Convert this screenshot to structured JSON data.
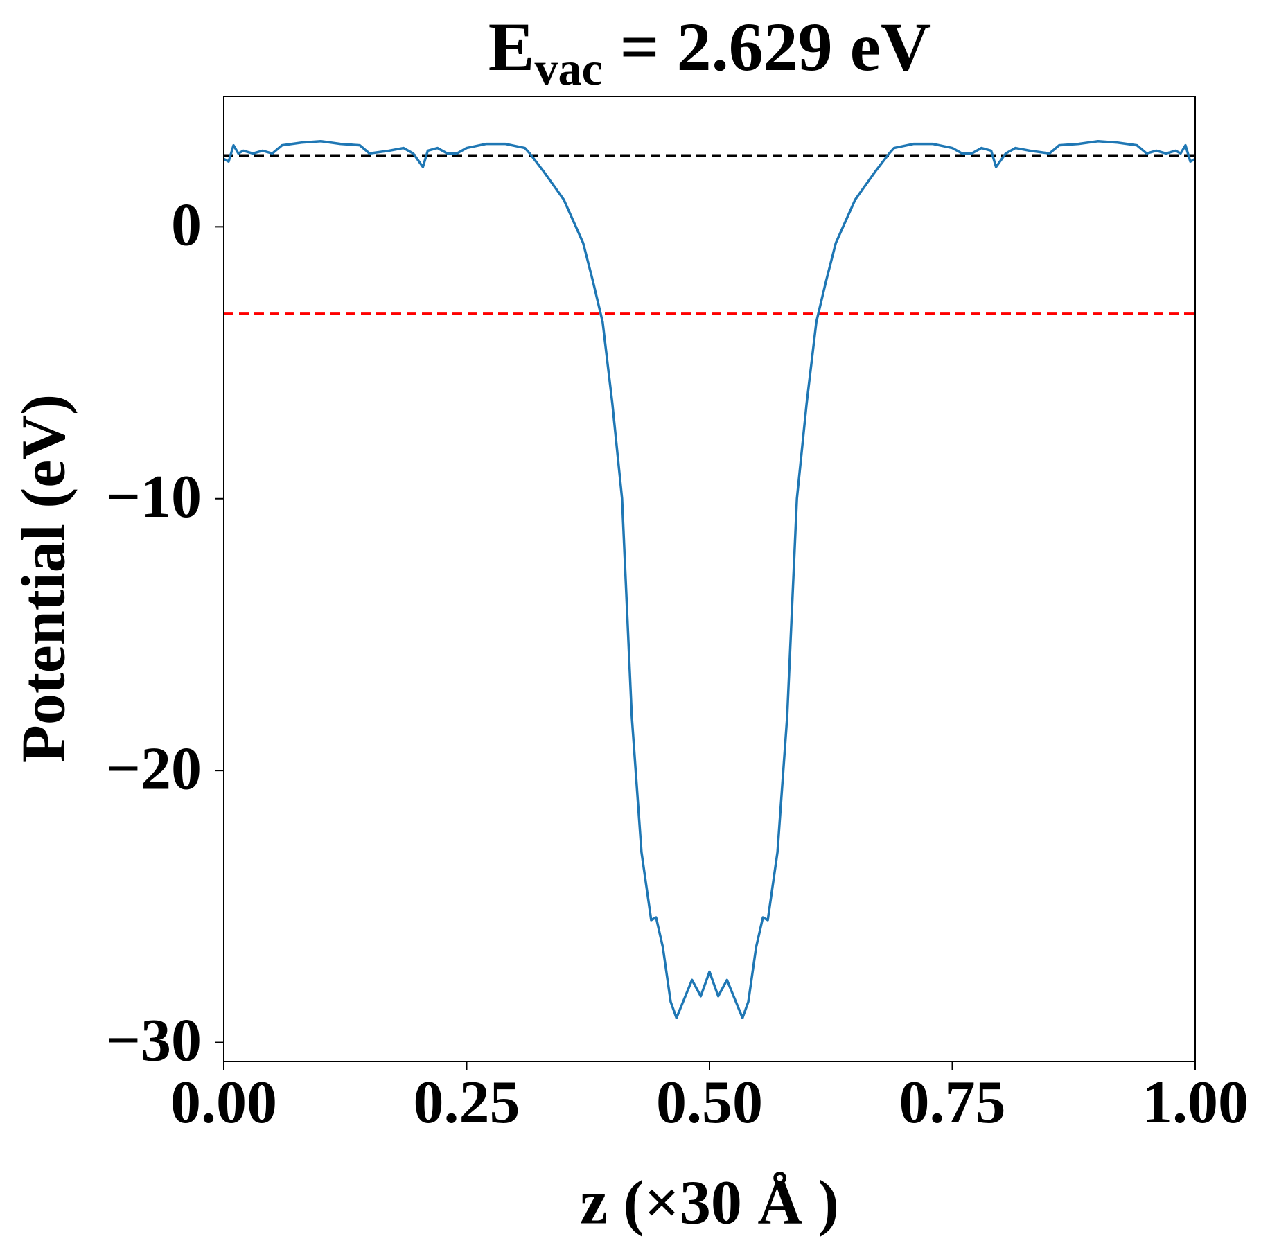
{
  "chart_data": {
    "type": "line",
    "title_parts": [
      "E",
      "vac",
      " = 2.629 eV"
    ],
    "xlabel": "z (×30 Å )",
    "ylabel": "Potential (eV)",
    "x": [
      0,
      0.005,
      0.01,
      0.015,
      0.02,
      0.03,
      0.04,
      0.05,
      0.06,
      0.08,
      0.1,
      0.12,
      0.14,
      0.15,
      0.17,
      0.185,
      0.195,
      0.205,
      0.21,
      0.22,
      0.23,
      0.24,
      0.25,
      0.27,
      0.29,
      0.31,
      0.315,
      0.33,
      0.35,
      0.37,
      0.38,
      0.39,
      0.4,
      0.41,
      0.42,
      0.43,
      0.44,
      0.445,
      0.452,
      0.46,
      0.466,
      0.474,
      0.482,
      0.491,
      0.5,
      0.509,
      0.518,
      0.526,
      0.534,
      0.54,
      0.548,
      0.555,
      0.56,
      0.57,
      0.58,
      0.59,
      0.6,
      0.61,
      0.62,
      0.63,
      0.65,
      0.67,
      0.685,
      0.69,
      0.71,
      0.73,
      0.75,
      0.76,
      0.77,
      0.78,
      0.79,
      0.795,
      0.805,
      0.815,
      0.83,
      0.85,
      0.86,
      0.88,
      0.9,
      0.92,
      0.94,
      0.95,
      0.96,
      0.97,
      0.98,
      0.985,
      0.99,
      0.995,
      1.0
    ],
    "values": [
      2.5,
      2.4,
      3.0,
      2.7,
      2.8,
      2.7,
      2.8,
      2.7,
      3.0,
      3.1,
      3.15,
      3.05,
      3.0,
      2.7,
      2.8,
      2.9,
      2.7,
      2.2,
      2.8,
      2.9,
      2.7,
      2.7,
      2.9,
      3.05,
      3.05,
      2.9,
      2.7,
      2.0,
      1.0,
      -0.6,
      -2.0,
      -3.5,
      -6.5,
      -10,
      -18,
      -23,
      -25.5,
      -25.4,
      -26.5,
      -28.5,
      -29.1,
      -28.4,
      -27.7,
      -28.3,
      -27.4,
      -28.3,
      -27.7,
      -28.4,
      -29.1,
      -28.5,
      -26.5,
      -25.4,
      -25.5,
      -23,
      -18,
      -10,
      -6.5,
      -3.5,
      -2.0,
      -0.6,
      1.0,
      2.0,
      2.7,
      2.9,
      3.05,
      3.05,
      2.9,
      2.7,
      2.7,
      2.9,
      2.8,
      2.2,
      2.7,
      2.9,
      2.8,
      2.7,
      3.0,
      3.05,
      3.15,
      3.1,
      3.0,
      2.7,
      2.8,
      2.7,
      2.8,
      2.7,
      3.0,
      2.4,
      2.5
    ],
    "color": "#1f77b4",
    "hlines": [
      {
        "y": 2.629,
        "color": "#000000"
      },
      {
        "y": -3.2,
        "color": "#ff0000"
      }
    ],
    "xlim": [
      0,
      1
    ],
    "ylim": [
      -30.7,
      4.8
    ],
    "xticks": [
      {
        "value": 0,
        "label": "0.00"
      },
      {
        "value": 0.25,
        "label": "0.25"
      },
      {
        "value": 0.5,
        "label": "0.50"
      },
      {
        "value": 0.75,
        "label": "0.75"
      },
      {
        "value": 1,
        "label": "1.00"
      }
    ],
    "yticks": [
      0,
      {
        "value": -10,
        "label": "−10"
      },
      {
        "value": -20,
        "label": "−20"
      },
      {
        "value": -30,
        "label": "−30"
      }
    ]
  }
}
